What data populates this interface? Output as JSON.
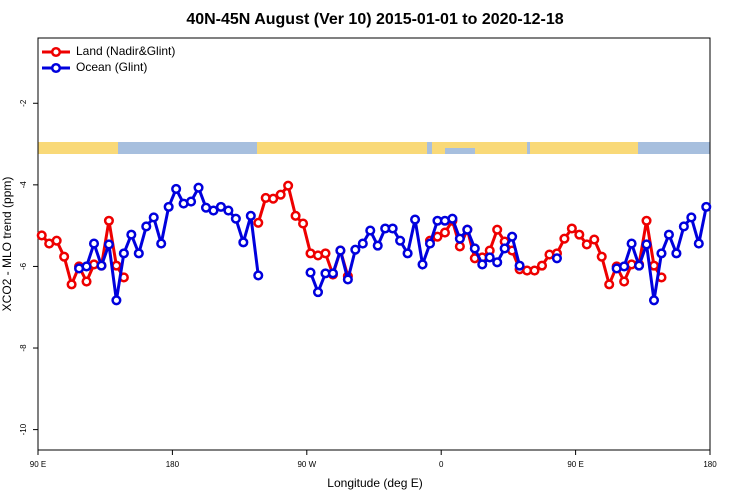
{
  "chart_data": {
    "type": "line",
    "title": "40N-45N August (Ver 10)   2015-01-01 to 2020-12-18",
    "xlabel": "Longitude (deg E)",
    "ylabel": "XCO2 - MLO trend (ppm)",
    "xlim": [
      90,
      540
    ],
    "ylim": [
      -10.5,
      -0.4
    ],
    "xticks": [
      {
        "value": 90,
        "label": "90 E"
      },
      180,
      {
        "value": 270,
        "label": "90 W"
      },
      {
        "value": 360,
        "label": "0"
      },
      {
        "value": 450,
        "label": "90 E"
      },
      {
        "value": 540,
        "label": "180"
      }
    ],
    "yticks": [
      -10,
      -8,
      -6,
      -4,
      -2
    ],
    "legend": "top-left",
    "x": [
      92.5,
      97.5,
      102.5,
      107.5,
      112.5,
      117.5,
      122.5,
      127.5,
      132.5,
      137.5,
      142.5,
      147.5,
      152.5,
      157.5,
      162.5,
      167.5,
      172.5,
      177.5,
      182.5,
      187.5,
      192.5,
      197.5,
      202.5,
      207.5,
      212.5,
      217.5,
      222.5,
      227.5,
      232.5,
      237.5,
      242.5,
      247.5,
      252.5,
      257.5,
      262.5,
      267.5,
      272.5,
      277.5,
      282.5,
      287.5,
      292.5,
      297.5,
      302.5,
      307.5,
      312.5,
      317.5,
      322.5,
      327.5,
      332.5,
      337.5,
      342.5,
      347.5,
      352.5,
      357.5,
      362.5,
      367.5,
      372.5,
      377.5,
      382.5,
      387.5,
      392.5,
      397.5,
      402.5,
      407.5,
      412.5,
      417.5,
      422.5,
      427.5,
      432.5,
      437.5,
      442.5,
      447.5,
      452.5,
      457.5,
      462.5,
      467.5,
      472.5,
      477.5,
      482.5,
      487.5,
      492.5,
      497.5,
      502.5,
      507.5,
      512.5,
      517.5,
      522.5,
      527.5,
      532.5,
      537.5
    ],
    "series": [
      {
        "name": "Land (Nadir&Glint)",
        "color": "#ee0000",
        "values": [
          -5.24,
          -5.44,
          -5.37,
          -5.76,
          -6.44,
          -6.0,
          -6.37,
          -5.95,
          -5.98,
          -4.88,
          -5.98,
          -6.27,
          null,
          null,
          null,
          null,
          null,
          null,
          null,
          null,
          null,
          null,
          null,
          null,
          null,
          null,
          null,
          null,
          null,
          -4.93,
          -4.32,
          -4.34,
          -4.24,
          -4.02,
          -4.76,
          -4.95,
          -5.68,
          -5.73,
          -5.68,
          -6.2,
          -5.61,
          -6.24,
          null,
          null,
          null,
          null,
          null,
          null,
          null,
          null,
          null,
          null,
          -5.37,
          -5.27,
          -5.17,
          -4.88,
          -5.51,
          -5.1,
          -5.8,
          -5.78,
          -5.61,
          -5.1,
          -5.39,
          -5.61,
          -6.07,
          -6.1,
          -6.1,
          -5.98,
          -5.71,
          -5.68,
          -5.32,
          -5.07,
          -5.22,
          -5.46,
          -5.34,
          -5.76,
          -6.44,
          -6.0,
          -6.37,
          -5.95,
          -5.95,
          -4.88,
          -5.98,
          -6.27,
          null,
          null,
          null,
          null,
          null,
          null
        ]
      },
      {
        "name": "Ocean (Glint)",
        "color": "#0000dd",
        "values": [
          null,
          null,
          null,
          null,
          null,
          -6.05,
          -6.0,
          -5.44,
          -5.98,
          -5.46,
          -6.83,
          -5.68,
          -5.22,
          -5.68,
          -5.02,
          -4.8,
          -5.44,
          -4.54,
          -4.1,
          -4.46,
          -4.41,
          -4.07,
          -4.56,
          -4.63,
          -4.54,
          -4.63,
          -4.83,
          -5.41,
          -4.76,
          -6.22,
          null,
          null,
          null,
          null,
          null,
          null,
          -6.15,
          -6.63,
          -6.17,
          -6.17,
          -5.61,
          -6.32,
          -5.59,
          -5.44,
          -5.12,
          -5.49,
          -5.07,
          -5.07,
          -5.37,
          -5.68,
          -4.85,
          -5.95,
          -5.44,
          -4.88,
          -4.88,
          -4.83,
          -5.32,
          -5.1,
          -5.56,
          -5.95,
          -5.78,
          -5.9,
          -5.56,
          -5.27,
          -5.98,
          null,
          null,
          null,
          null,
          -5.8,
          null,
          null,
          null,
          null,
          null,
          null,
          null,
          -6.05,
          -6.0,
          -5.44,
          -5.98,
          -5.46,
          -6.83,
          -5.68,
          -5.22,
          -5.68,
          -5.02,
          -4.8,
          -5.44,
          -4.54
        ]
      }
    ]
  }
}
